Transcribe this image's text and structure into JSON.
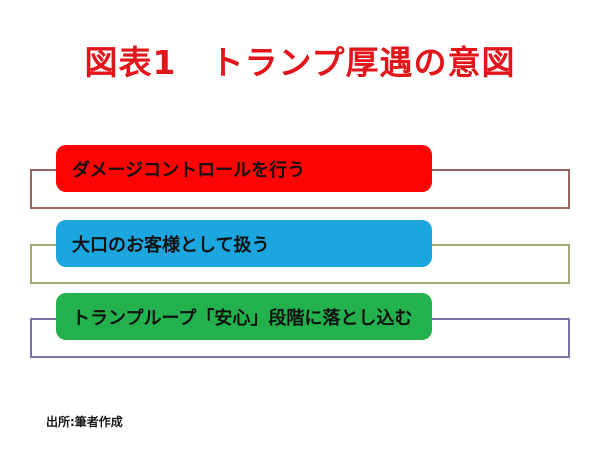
{
  "slide": {
    "title": "図表1　トランプ厚遇の意図",
    "title_color": "#e2151b",
    "text_color": "#111111",
    "background_color": "#ffffff",
    "items": [
      {
        "label": "ダメージコントロールを行う",
        "fill_color": "#fe0505",
        "band_border_color": "#9a645f"
      },
      {
        "label": "大口のお客様として扱う",
        "fill_color": "#1ca6e0",
        "band_border_color": "#a8a878"
      },
      {
        "label": "トランプループ「安心」段階に落とし込む",
        "fill_color": "#22b14c",
        "band_border_color": "#7e6ea8"
      }
    ],
    "source_note": "出所:筆者作成"
  }
}
